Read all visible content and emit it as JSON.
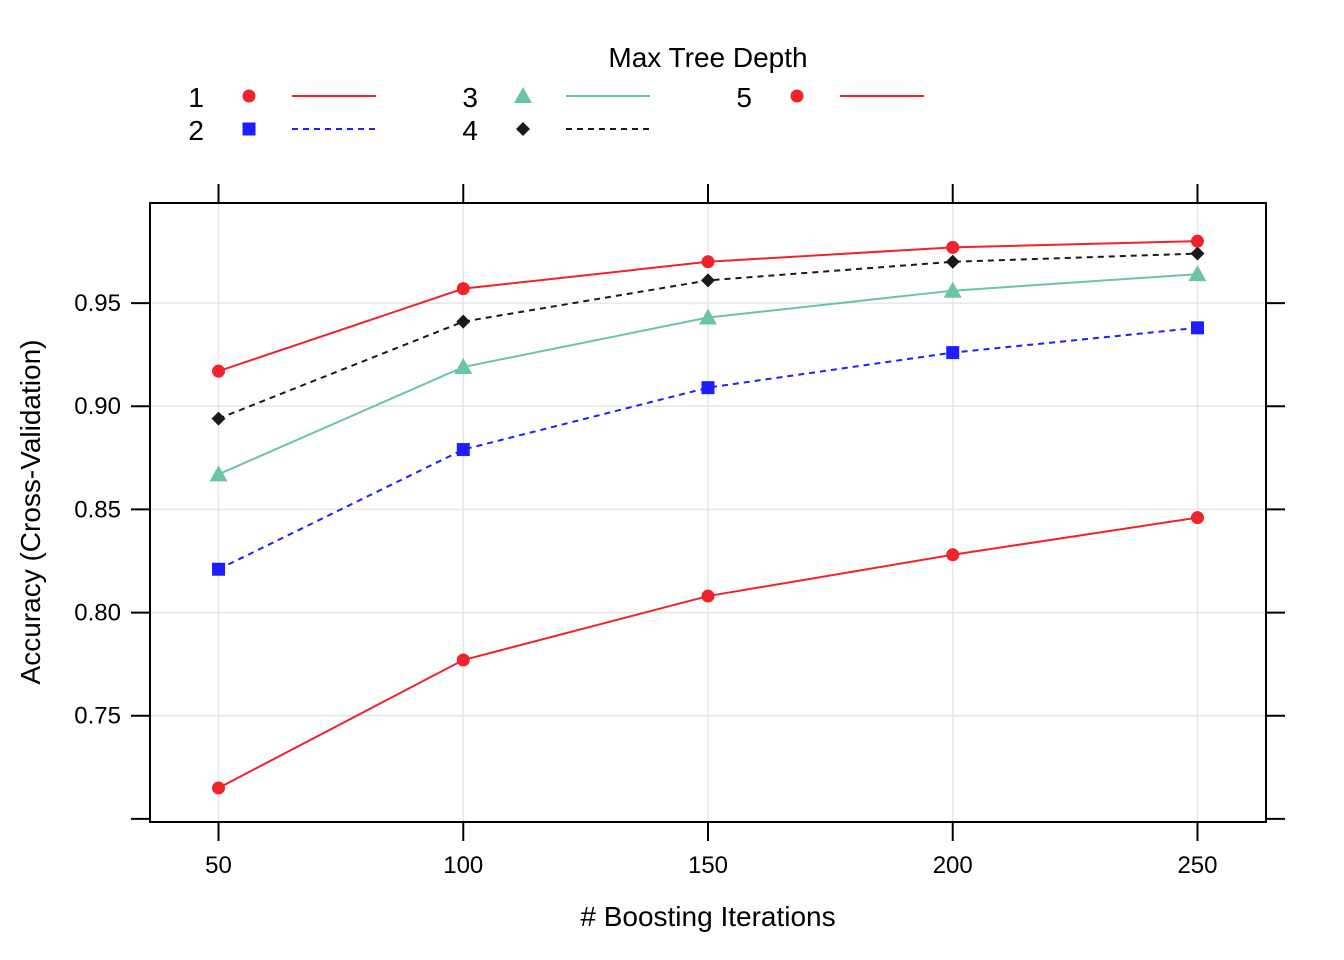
{
  "chart_data": {
    "type": "line",
    "title": "",
    "xlabel": "# Boosting Iterations",
    "ylabel": "Accuracy (Cross-Validation)",
    "legend_title": "Max Tree Depth",
    "legend_position": "top",
    "grid": true,
    "xlim": [
      36,
      264
    ],
    "ylim": [
      0.6985,
      0.9985
    ],
    "x_ticks": [
      "50",
      "100",
      "150",
      "200",
      "250"
    ],
    "y_ticks": [
      "0.75",
      "0.80",
      "0.85",
      "0.90",
      "0.95"
    ],
    "x": [
      50,
      100,
      150,
      200,
      250
    ],
    "series": [
      {
        "name": "1",
        "values": [
          0.715,
          0.777,
          0.808,
          0.828,
          0.846
        ],
        "color": "#f0232d",
        "marker": "circle",
        "line": "solid"
      },
      {
        "name": "2",
        "values": [
          0.821,
          0.879,
          0.909,
          0.926,
          0.938
        ],
        "color": "#1e1eff",
        "marker": "square",
        "line": "dashed"
      },
      {
        "name": "3",
        "values": [
          0.867,
          0.919,
          0.943,
          0.956,
          0.964
        ],
        "color": "#6bc5a5",
        "marker": "triangle",
        "line": "solid"
      },
      {
        "name": "4",
        "values": [
          0.894,
          0.941,
          0.961,
          0.97,
          0.974
        ],
        "color": "#1a1a1a",
        "marker": "diamond",
        "line": "dashed"
      },
      {
        "name": "5",
        "values": [
          0.917,
          0.957,
          0.97,
          0.977,
          0.98
        ],
        "color": "#f0232d",
        "marker": "circle",
        "line": "solid"
      }
    ]
  }
}
